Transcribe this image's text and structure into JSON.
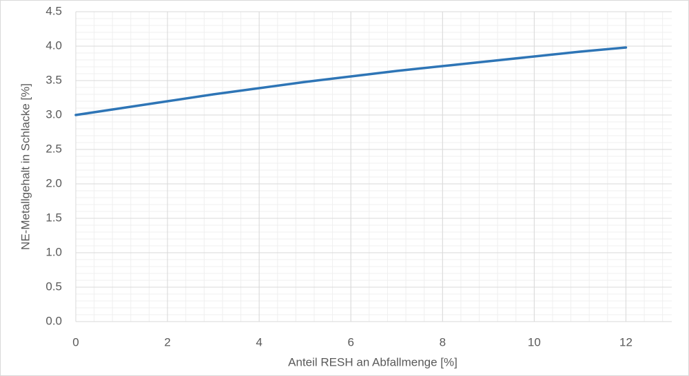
{
  "chart_data": {
    "type": "line",
    "x_label": "Anteil RESH an Abfallmenge [%]",
    "y_label": "NE-Metallgehalt in Schlacke [%]",
    "x": [
      0,
      1,
      2,
      3,
      4,
      5,
      6,
      7,
      8,
      9,
      10,
      11,
      12
    ],
    "series": [
      {
        "name": "NE-Metallgehalt",
        "color": "#2e75b6",
        "values": [
          3.0,
          3.1,
          3.2,
          3.3,
          3.39,
          3.48,
          3.56,
          3.64,
          3.71,
          3.78,
          3.85,
          3.92,
          3.98
        ]
      }
    ],
    "xlim": [
      0,
      13
    ],
    "xticks": [
      0,
      2,
      4,
      6,
      8,
      10,
      12
    ],
    "ylim": [
      0,
      4.5
    ],
    "yticks": [
      {
        "value": 0,
        "label": "0.0"
      },
      0.5,
      {
        "value": 1,
        "label": "1.0"
      },
      1.5,
      {
        "value": 2,
        "label": "2.0"
      },
      2.5,
      {
        "value": 3,
        "label": "3.0"
      },
      3.5,
      {
        "value": 4,
        "label": "4.0"
      },
      4.5
    ],
    "grid": true,
    "x_minor_divisions": 5,
    "y_minor_divisions": 5
  }
}
